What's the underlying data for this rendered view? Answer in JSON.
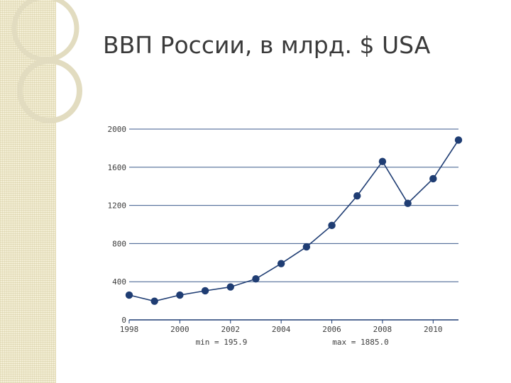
{
  "slide": {
    "title": "ВВП России, в млрд. $ USA"
  },
  "colors": {
    "line": "#1f3d73",
    "grid": "#3c5a8c",
    "panel": "#f3eed5"
  },
  "chart_data": {
    "type": "line",
    "title": "",
    "xlabel": "",
    "ylabel": "",
    "xlim": [
      1998,
      2011
    ],
    "ylim": [
      0,
      2000
    ],
    "x_ticks": [
      1998,
      2000,
      2002,
      2004,
      2006,
      2008,
      2010
    ],
    "y_ticks": [
      0,
      400,
      800,
      1200,
      1600,
      2000
    ],
    "grid": true,
    "series": [
      {
        "x": [
          1998,
          1999,
          2000,
          2001,
          2002,
          2003,
          2004,
          2005,
          2006,
          2007,
          2008,
          2009,
          2010,
          2011
        ],
        "values": [
          260,
          195.9,
          260,
          305,
          345,
          430,
          590,
          765,
          990,
          1300,
          1660,
          1222,
          1480,
          1885
        ]
      }
    ],
    "stats": {
      "min_label": "min = 195.9",
      "max_label": "max = 1885.0"
    }
  }
}
